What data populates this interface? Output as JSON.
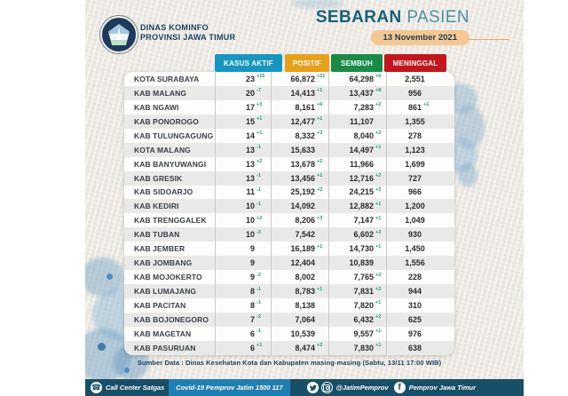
{
  "header": {
    "agency_line1": "DINAS KOMINFO",
    "agency_line2": "PROVINSI JAWA TIMUR",
    "title_bold": "SEBARAN",
    "title_light": "PASIEN",
    "date_badge": "13 November 2021"
  },
  "source_note": "Sumber Data : Dinas Kesehatan Kota dan Kabupaten masing-masing (Sabtu, 13/11 17:00 WIB)",
  "footer": {
    "call_center_label": "Call Center Satgas",
    "call_center_number": "Covid-19 Pemprov Jatim 1500 117",
    "twitter_handle": "@JatimPemprov",
    "facebook_name": "Pemprov Jawa Timur",
    "phone_icon_glyph": "☎"
  },
  "colors": {
    "accent_navy": "#1d3f5e",
    "delta_green": "#1f9d6e",
    "footer_dark": "#174f68",
    "footer_light": "#1f7fb2",
    "date_pill": "#f6c78f"
  },
  "chart_data": {
    "type": "table",
    "title": "SEBARAN PASIEN",
    "date": "13 November 2021",
    "columns": [
      {
        "key": "aktif",
        "label": "KASUS AKTIF",
        "color": "#1697c1"
      },
      {
        "key": "positif",
        "label": "POSITIF",
        "color": "#e8a018"
      },
      {
        "key": "sembuh",
        "label": "SEMBUH",
        "color": "#188c46"
      },
      {
        "key": "meninggal",
        "label": "MENINGGAL",
        "color": "#c4151c"
      }
    ],
    "rows": [
      {
        "region": "KOTA SURABAYA",
        "aktif": "23",
        "aktif_delta": "+15",
        "positif": "66,872",
        "positif_delta": "+21",
        "sembuh": "64,298",
        "sembuh_delta": "+6",
        "meninggal": "2,551",
        "meninggal_delta": ""
      },
      {
        "region": "KAB MALANG",
        "aktif": "20",
        "aktif_delta": "-7",
        "positif": "14,413",
        "positif_delta": "+1",
        "sembuh": "13,437",
        "sembuh_delta": "+8",
        "meninggal": "956",
        "meninggal_delta": ""
      },
      {
        "region": "KAB NGAWI",
        "aktif": "17",
        "aktif_delta": "+3",
        "positif": "8,161",
        "positif_delta": "+6",
        "sembuh": "7,283",
        "sembuh_delta": "+2",
        "meninggal": "861",
        "meninggal_delta": "+1"
      },
      {
        "region": "KAB PONOROGO",
        "aktif": "15",
        "aktif_delta": "+1",
        "positif": "12,477",
        "positif_delta": "+1",
        "sembuh": "11,107",
        "sembuh_delta": "",
        "meninggal": "1,355",
        "meninggal_delta": ""
      },
      {
        "region": "KAB TULUNGAGUNG",
        "aktif": "14",
        "aktif_delta": "+1",
        "positif": "8,332",
        "positif_delta": "+3",
        "sembuh": "8,040",
        "sembuh_delta": "+2",
        "meninggal": "278",
        "meninggal_delta": ""
      },
      {
        "region": "KOTA MALANG",
        "aktif": "13",
        "aktif_delta": "-1",
        "positif": "15,633",
        "positif_delta": "",
        "sembuh": "14,497",
        "sembuh_delta": "+1",
        "meninggal": "1,123",
        "meninggal_delta": ""
      },
      {
        "region": "KAB BANYUWANGI",
        "aktif": "13",
        "aktif_delta": "+2",
        "positif": "13,678",
        "positif_delta": "+2",
        "sembuh": "11,966",
        "sembuh_delta": "",
        "meninggal": "1,699",
        "meninggal_delta": ""
      },
      {
        "region": "KAB GRESIK",
        "aktif": "13",
        "aktif_delta": "-1",
        "positif": "13,456",
        "positif_delta": "+1",
        "sembuh": "12,716",
        "sembuh_delta": "+2",
        "meninggal": "727",
        "meninggal_delta": ""
      },
      {
        "region": "KAB SIDOARJO",
        "aktif": "11",
        "aktif_delta": "-1",
        "positif": "25,192",
        "positif_delta": "+2",
        "sembuh": "24,215",
        "sembuh_delta": "+3",
        "meninggal": "966",
        "meninggal_delta": ""
      },
      {
        "region": "KAB KEDIRI",
        "aktif": "10",
        "aktif_delta": "-1",
        "positif": "14,092",
        "positif_delta": "",
        "sembuh": "12,882",
        "sembuh_delta": "+1",
        "meninggal": "1,200",
        "meninggal_delta": ""
      },
      {
        "region": "KAB TRENGGALEK",
        "aktif": "10",
        "aktif_delta": "+2",
        "positif": "8,206",
        "positif_delta": "+3",
        "sembuh": "7,147",
        "sembuh_delta": "+1",
        "meninggal": "1,049",
        "meninggal_delta": ""
      },
      {
        "region": "KAB TUBAN",
        "aktif": "10",
        "aktif_delta": "-3",
        "positif": "7,542",
        "positif_delta": "",
        "sembuh": "6,602",
        "sembuh_delta": "+3",
        "meninggal": "930",
        "meninggal_delta": ""
      },
      {
        "region": "KAB JEMBER",
        "aktif": "9",
        "aktif_delta": "",
        "positif": "16,189",
        "positif_delta": "+1",
        "sembuh": "14,730",
        "sembuh_delta": "+1",
        "meninggal": "1,450",
        "meninggal_delta": ""
      },
      {
        "region": "KAB JOMBANG",
        "aktif": "9",
        "aktif_delta": "",
        "positif": "12,404",
        "positif_delta": "",
        "sembuh": "10,839",
        "sembuh_delta": "",
        "meninggal": "1,556",
        "meninggal_delta": ""
      },
      {
        "region": "KAB MOJOKERTO",
        "aktif": "9",
        "aktif_delta": "-2",
        "positif": "8,002",
        "positif_delta": "",
        "sembuh": "7,765",
        "sembuh_delta": "+2",
        "meninggal": "228",
        "meninggal_delta": ""
      },
      {
        "region": "KAB LUMAJANG",
        "aktif": "8",
        "aktif_delta": "-1",
        "positif": "8,783",
        "positif_delta": "+1",
        "sembuh": "7,831",
        "sembuh_delta": "+2",
        "meninggal": "944",
        "meninggal_delta": ""
      },
      {
        "region": "KAB PACITAN",
        "aktif": "8",
        "aktif_delta": "-1",
        "positif": "8,138",
        "positif_delta": "",
        "sembuh": "7,820",
        "sembuh_delta": "+1",
        "meninggal": "310",
        "meninggal_delta": ""
      },
      {
        "region": "KAB BOJONEGORO",
        "aktif": "7",
        "aktif_delta": "-2",
        "positif": "7,064",
        "positif_delta": "",
        "sembuh": "6,432",
        "sembuh_delta": "+2",
        "meninggal": "625",
        "meninggal_delta": ""
      },
      {
        "region": "KAB MAGETAN",
        "aktif": "6",
        "aktif_delta": "-1",
        "positif": "10,539",
        "positif_delta": "",
        "sembuh": "9,557",
        "sembuh_delta": "+1",
        "meninggal": "976",
        "meninggal_delta": ""
      },
      {
        "region": "KAB PASURUAN",
        "aktif": "6",
        "aktif_delta": "+1",
        "positif": "8,474",
        "positif_delta": "+2",
        "sembuh": "7,830",
        "sembuh_delta": "+1",
        "meninggal": "638",
        "meninggal_delta": ""
      }
    ]
  }
}
